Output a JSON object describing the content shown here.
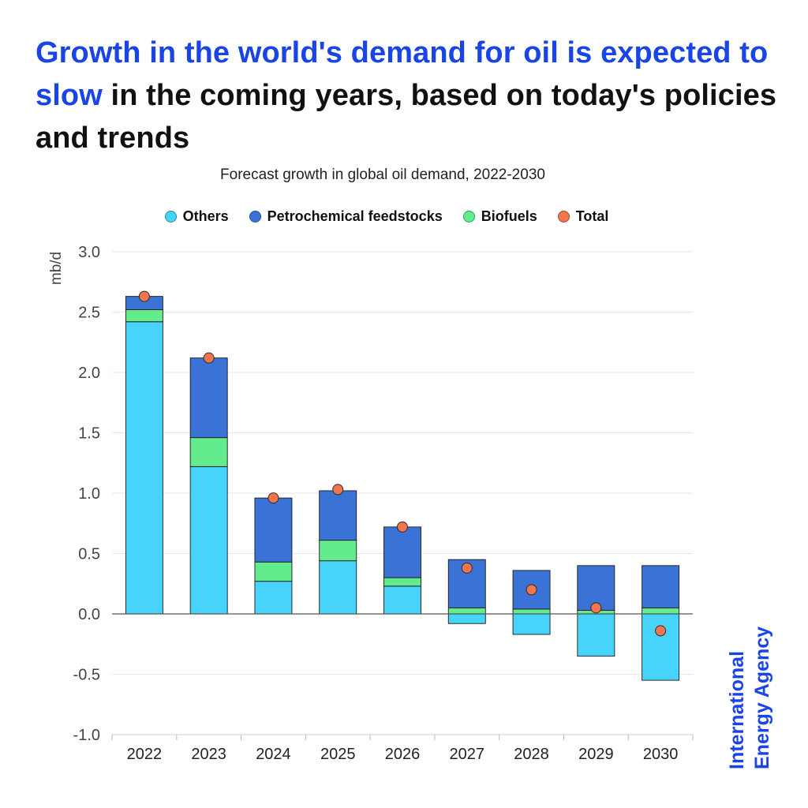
{
  "headline": {
    "highlight": "Growth in the world's demand for oil is expected to slow",
    "rest": " in the coming years, based on today's policies and trends"
  },
  "brand": {
    "line1": "International",
    "line2": "Energy Agency"
  },
  "colors": {
    "headline_accent": "#1a45e6",
    "others": "#48d3fa",
    "petrochemical": "#3b72d6",
    "biofuels": "#62ec8e",
    "total": "#f07650",
    "brand": "#1a45e6"
  },
  "chart_data": {
    "type": "bar",
    "title": "Forecast growth in global oil demand, 2022-2030",
    "ylabel": "mb/d",
    "xlabel": "",
    "ylim": [
      -1.0,
      3.0
    ],
    "yticks": [
      {
        "value": 3.0,
        "label": "3.0"
      },
      {
        "value": 2.5,
        "label": "2.5"
      },
      {
        "value": 2.0,
        "label": "2.0"
      },
      {
        "value": 1.5,
        "label": "1.5"
      },
      {
        "value": 1.0,
        "label": "1.0"
      },
      {
        "value": 0.5,
        "label": "0.5"
      },
      {
        "value": 0.0,
        "label": "0.0"
      },
      {
        "value": -0.5,
        "label": "-0.5"
      },
      {
        "value": -1.0,
        "label": "-1.0"
      }
    ],
    "categories": [
      "2022",
      "2023",
      "2024",
      "2025",
      "2026",
      "2027",
      "2028",
      "2029",
      "2030"
    ],
    "stacked": true,
    "grid": true,
    "legend_position": "top-center",
    "series": [
      {
        "name": "Others",
        "kind": "bar",
        "color": "#48d3fa",
        "values": [
          2.42,
          1.22,
          0.27,
          0.44,
          0.23,
          -0.08,
          -0.17,
          -0.35,
          -0.55
        ]
      },
      {
        "name": "Biofuels",
        "kind": "bar",
        "color": "#62ec8e",
        "values": [
          0.1,
          0.24,
          0.16,
          0.17,
          0.07,
          0.05,
          0.04,
          0.03,
          0.05
        ]
      },
      {
        "name": "Petrochemical feedstocks",
        "kind": "bar",
        "color": "#3b72d6",
        "values": [
          0.11,
          0.66,
          0.53,
          0.41,
          0.42,
          0.4,
          0.32,
          0.37,
          0.35
        ]
      },
      {
        "name": "Total",
        "kind": "point",
        "color": "#f07650",
        "values": [
          2.63,
          2.12,
          0.96,
          1.03,
          0.72,
          0.38,
          0.2,
          0.05,
          -0.14
        ]
      }
    ],
    "legend": [
      {
        "name": "Others",
        "color": "#48d3fa"
      },
      {
        "name": "Petrochemical feedstocks",
        "color": "#3b72d6"
      },
      {
        "name": "Biofuels",
        "color": "#62ec8e"
      },
      {
        "name": "Total",
        "color": "#f07650"
      }
    ]
  }
}
